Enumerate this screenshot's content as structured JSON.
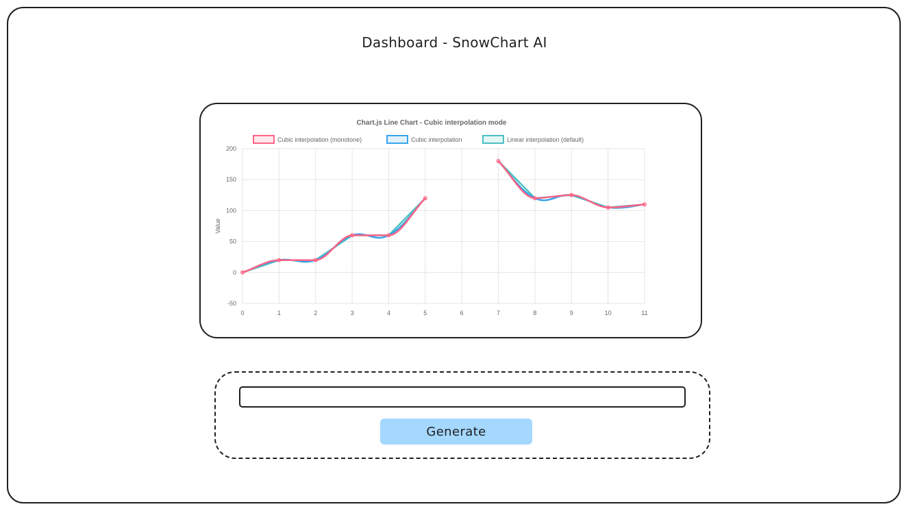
{
  "page": {
    "title": "Dashboard - SnowChart AI"
  },
  "prompt": {
    "value": "",
    "placeholder": ""
  },
  "actions": {
    "generate_label": "Generate"
  },
  "colors": {
    "monotone": "#ff6384",
    "cubic": "#36a2eb",
    "linear": "#4bc0c0",
    "button": "#a5d8ff"
  },
  "chart_data": {
    "type": "line",
    "title": "Chart.js Line Chart - Cubic interpolation mode",
    "xlabel": "",
    "ylabel": "Value",
    "x": [
      "0",
      "1",
      "2",
      "3",
      "4",
      "5",
      "6",
      "7",
      "8",
      "9",
      "10",
      "11"
    ],
    "ylim": [
      -50,
      200
    ],
    "yticks": [
      -50,
      0,
      50,
      100,
      150,
      200
    ],
    "grid": true,
    "legend": "top",
    "series": [
      {
        "name": "Cubic interpolation (monotone)",
        "color": "#ff6384",
        "values": [
          0,
          20,
          20,
          60,
          60,
          120,
          null,
          180,
          120,
          125,
          105,
          110
        ]
      },
      {
        "name": "Cubic interpolation",
        "color": "#36a2eb",
        "values": [
          0,
          20,
          20,
          60,
          60,
          120,
          null,
          180,
          120,
          125,
          105,
          110
        ]
      },
      {
        "name": "Linear interpolation (default)",
        "color": "#4bc0c0",
        "values": [
          0,
          20,
          20,
          60,
          60,
          120,
          null,
          180,
          120,
          125,
          105,
          110
        ]
      }
    ]
  }
}
